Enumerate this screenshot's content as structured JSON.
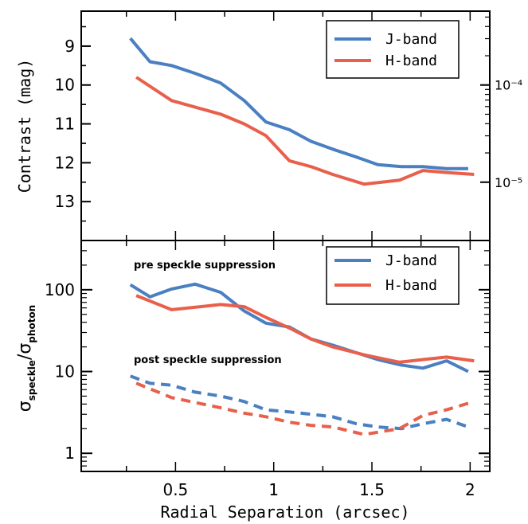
{
  "chart_data": [
    {
      "type": "line",
      "panel": "top",
      "ylabel": "Contrast (mag)",
      "xlabel": "",
      "xlim": [
        0.02,
        2.1
      ],
      "ylim": [
        14.0,
        8.1
      ],
      "y_ticks": [
        9,
        10,
        11,
        12,
        13
      ],
      "y_tick_labels": [
        "9",
        "10",
        "11",
        "12",
        "13"
      ],
      "y2_tick_labels": [
        "10⁻⁴",
        "10⁻⁵"
      ],
      "y2_tick_values_mag": [
        10.0,
        12.5
      ],
      "legend_position": "top-right",
      "grid": false,
      "series": [
        {
          "name": "J-band",
          "color": "#4a7fc1",
          "dashed": false,
          "x": [
            0.27,
            0.37,
            0.48,
            0.6,
            0.73,
            0.85,
            0.96,
            1.08,
            1.19,
            1.3,
            1.42,
            1.53,
            1.65,
            1.76,
            1.88,
            1.99
          ],
          "y": [
            8.8,
            9.4,
            9.5,
            9.7,
            9.95,
            10.4,
            10.95,
            11.15,
            11.45,
            11.65,
            11.85,
            12.05,
            12.1,
            12.1,
            12.15,
            12.15
          ]
        },
        {
          "name": "H-band",
          "color": "#e8604c",
          "dashed": false,
          "x": [
            0.3,
            0.48,
            0.73,
            0.85,
            0.96,
            1.08,
            1.19,
            1.3,
            1.46,
            1.64,
            1.76,
            1.88,
            2.02
          ],
          "y": [
            9.8,
            10.4,
            10.75,
            11.0,
            11.3,
            11.95,
            12.1,
            12.3,
            12.55,
            12.45,
            12.2,
            12.25,
            12.3
          ]
        }
      ]
    },
    {
      "type": "line",
      "panel": "bottom",
      "ylabel": "σspeckle/σphoton",
      "xlabel": "Radial Separation (arcsec)",
      "xlim": [
        0.02,
        2.1
      ],
      "ylim": [
        0.6,
        400
      ],
      "log_y": true,
      "y_ticks": [
        1,
        10,
        100
      ],
      "y_tick_labels": [
        "1",
        "10",
        "100"
      ],
      "x_ticks": [
        0.5,
        1,
        1.5,
        2
      ],
      "x_tick_labels": [
        "0.5",
        "1",
        "1.5",
        "2"
      ],
      "legend_position": "top-right",
      "grid": false,
      "annotations": [
        "pre speckle suppression",
        "post speckle suppression"
      ],
      "series": [
        {
          "name": "J-band",
          "color": "#4a7fc1",
          "dashed": false,
          "x": [
            0.27,
            0.37,
            0.48,
            0.6,
            0.73,
            0.85,
            0.96,
            1.08,
            1.19,
            1.3,
            1.42,
            1.53,
            1.65,
            1.76,
            1.88,
            1.99
          ],
          "y": [
            115,
            82,
            102,
            117,
            93,
            55,
            39,
            35,
            25,
            21,
            17,
            14,
            12,
            11,
            13.5,
            10
          ]
        },
        {
          "name": "H-band",
          "color": "#e8604c",
          "dashed": false,
          "x": [
            0.3,
            0.48,
            0.73,
            0.85,
            0.96,
            1.08,
            1.19,
            1.3,
            1.46,
            1.64,
            1.76,
            1.88,
            2.02
          ],
          "y": [
            85,
            57,
            66,
            62,
            46,
            34,
            25,
            20,
            16,
            13,
            14,
            15,
            13.5
          ]
        },
        {
          "color": "#4a7fc1",
          "dashed": true,
          "x": [
            0.27,
            0.37,
            0.48,
            0.6,
            0.73,
            0.85,
            0.96,
            1.08,
            1.19,
            1.3,
            1.42,
            1.53,
            1.65,
            1.76,
            1.88,
            1.99
          ],
          "y": [
            8.8,
            7.2,
            6.8,
            5.6,
            5.0,
            4.3,
            3.4,
            3.2,
            3.0,
            2.8,
            2.3,
            2.1,
            2.0,
            2.3,
            2.6,
            2.1
          ]
        },
        {
          "color": "#e8604c",
          "dashed": true,
          "x": [
            0.3,
            0.48,
            0.73,
            0.85,
            0.96,
            1.08,
            1.19,
            1.3,
            1.46,
            1.64,
            1.76,
            1.88,
            2.02
          ],
          "y": [
            7.2,
            4.8,
            3.6,
            3.1,
            2.8,
            2.4,
            2.2,
            2.1,
            1.7,
            2.0,
            2.9,
            3.4,
            4.3
          ]
        }
      ]
    }
  ]
}
